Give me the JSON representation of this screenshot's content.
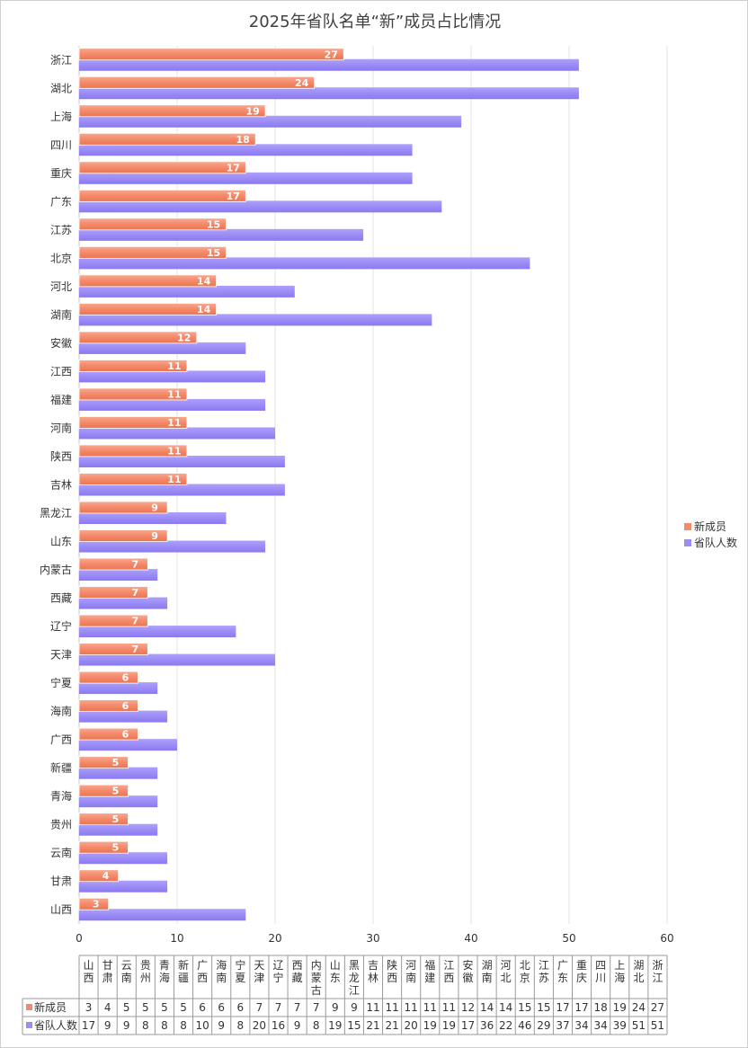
{
  "chart_data": {
    "type": "bar",
    "orientation": "horizontal",
    "title": "2025年省队名单“新”成员占比情况",
    "categories": [
      "山西",
      "甘肃",
      "云南",
      "贵州",
      "青海",
      "新疆",
      "广西",
      "海南",
      "宁夏",
      "天津",
      "辽宁",
      "西藏",
      "内蒙古",
      "山东",
      "黑龙江",
      "吉林",
      "陕西",
      "河南",
      "福建",
      "江西",
      "安徽",
      "湖南",
      "河北",
      "北京",
      "江苏",
      "广东",
      "重庆",
      "四川",
      "上海",
      "湖北",
      "浙江"
    ],
    "series": [
      {
        "name": "新成员",
        "color": "#f4896b",
        "values": [
          3,
          4,
          5,
          5,
          5,
          5,
          6,
          6,
          6,
          7,
          7,
          7,
          7,
          9,
          9,
          11,
          11,
          11,
          11,
          11,
          12,
          14,
          14,
          15,
          15,
          17,
          17,
          18,
          19,
          24,
          27
        ]
      },
      {
        "name": "省队人数",
        "color": "#9b8cf6",
        "values": [
          17,
          9,
          9,
          8,
          8,
          8,
          10,
          9,
          8,
          20,
          16,
          9,
          8,
          19,
          15,
          21,
          21,
          20,
          19,
          19,
          17,
          36,
          22,
          46,
          29,
          37,
          34,
          34,
          39,
          51,
          51
        ]
      }
    ],
    "xlim": [
      0,
      60
    ],
    "xticks": [
      0,
      10,
      20,
      30,
      40,
      50,
      60
    ],
    "grid": true,
    "legend": "right",
    "data_table": true
  }
}
